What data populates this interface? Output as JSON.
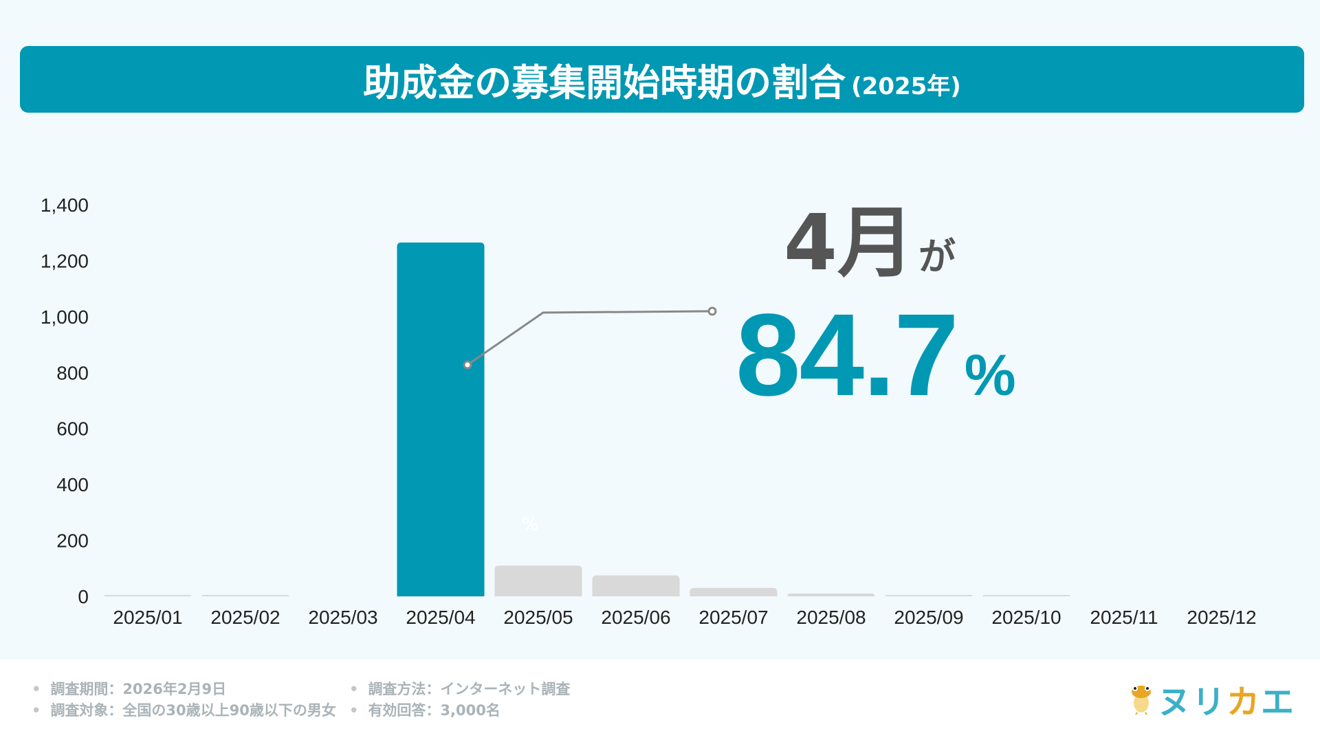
{
  "header": {
    "title": "助成金の募集開始時期の割合",
    "subtitle": "(2025年)"
  },
  "chart_data": {
    "type": "bar",
    "title": "助成金の募集開始時期の割合 (2025年)",
    "categories": [
      "2025/01",
      "2025/02",
      "2025/03",
      "2025/04",
      "2025/05",
      "2025/06",
      "2025/07",
      "2025/08",
      "2025/09",
      "2025/10",
      "2025/11",
      "2025/12"
    ],
    "values": [
      1,
      1,
      0,
      1265,
      110,
      75,
      30,
      10,
      3,
      1,
      0,
      0
    ],
    "highlight_index": 3,
    "ylim": [
      0,
      1400
    ],
    "yticks": [
      "0",
      "200",
      "400",
      "600",
      "800",
      "1,000",
      "1,200",
      "1,400"
    ],
    "xlabel": "",
    "ylabel": "",
    "grid": false,
    "colors": {
      "highlight": "#0098b3",
      "other": "#d9d9d9"
    }
  },
  "annotation": {
    "month": "4月",
    "particle": "が",
    "percent_value": "84.7",
    "percent_sign": "%",
    "faint_label": "%"
  },
  "footer": {
    "items": [
      "調査期間：2026年2月9日",
      "調査方法：インターネット調査",
      "調査対象：全国の30歳以上90歳以下の男女",
      "有効回答：3,000名"
    ]
  },
  "logo": {
    "text": "ヌリカエ"
  }
}
